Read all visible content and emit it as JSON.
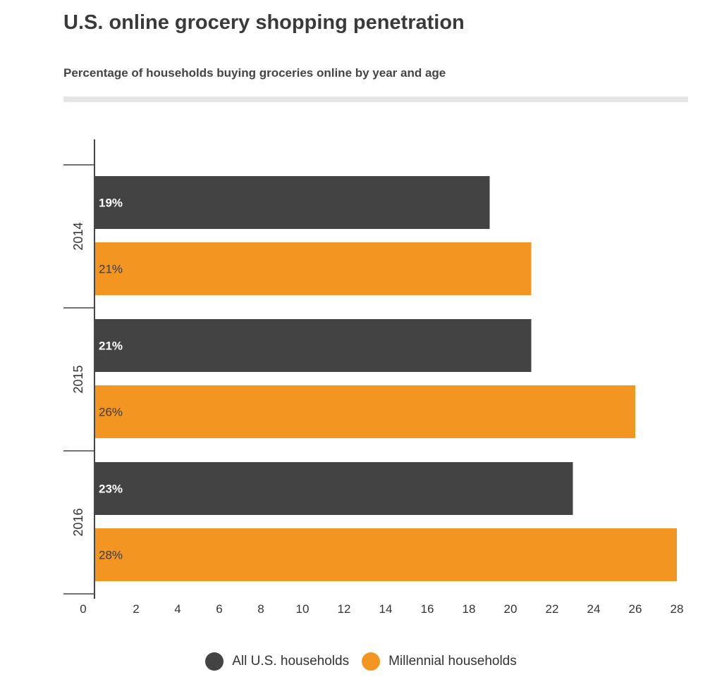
{
  "title": "U.S. online grocery shopping penetration",
  "subtitle": "Percentage of households buying groceries online by year and age",
  "colors": {
    "all": "#434343",
    "millennial": "#f39521",
    "axis": "#444444",
    "rule": "#e6e6e6"
  },
  "legend": [
    {
      "label": "All U.S. households",
      "color": "#434343"
    },
    {
      "label": "Millennial households",
      "color": "#f39521"
    }
  ],
  "chart_data": {
    "type": "bar",
    "orientation": "horizontal",
    "categories": [
      "2014",
      "2015",
      "2016"
    ],
    "series": [
      {
        "name": "All U.S. households",
        "values": [
          19,
          21,
          23
        ],
        "labels": [
          "19%",
          "21%",
          "23%"
        ]
      },
      {
        "name": "Millennial households",
        "values": [
          21,
          26,
          28
        ],
        "labels": [
          "21%",
          "26%",
          "28%"
        ]
      }
    ],
    "xlim": [
      0,
      28
    ],
    "xticks": [
      0,
      2,
      4,
      6,
      8,
      10,
      12,
      14,
      16,
      18,
      20,
      22,
      24,
      26,
      28
    ],
    "grid": false,
    "legend_position": "bottom"
  }
}
